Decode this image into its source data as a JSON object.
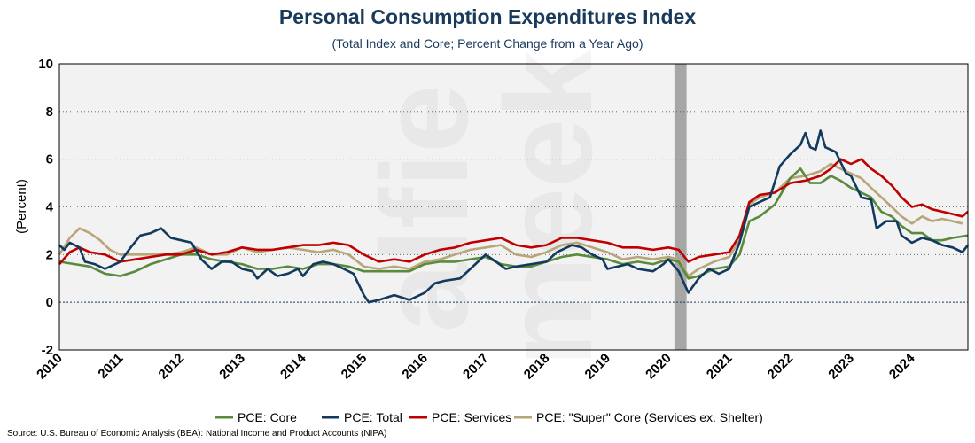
{
  "chart_data": {
    "type": "line",
    "title": "Personal Consumption Expenditures Index",
    "subtitle": "(Total Index and Core; Percent Change from a Year Ago)",
    "ylabel": "(Percent)",
    "xlabel": "",
    "xlim": [
      2010,
      2024.92
    ],
    "ylim": [
      -2,
      10
    ],
    "yticks": [
      -2,
      0,
      2,
      4,
      6,
      8,
      10
    ],
    "xticks": [
      2010,
      2011,
      2012,
      2013,
      2014,
      2015,
      2016,
      2017,
      2018,
      2019,
      2020,
      2021,
      2022,
      2023,
      2024
    ],
    "grid": "horizontal-dotted",
    "legend": "bottom",
    "recession_shading": [
      2020.1,
      2020.3
    ],
    "source": "Source: U.S. Bureau of Economic Analysis (BEA): National Income and Product Accounts (NIPA)",
    "watermark": "alfie meek",
    "series": [
      {
        "name": "PCE: Core",
        "color": "#5a8a3c",
        "points": [
          [
            2010,
            1.7
          ],
          [
            2010.25,
            1.6
          ],
          [
            2010.5,
            1.5
          ],
          [
            2010.75,
            1.2
          ],
          [
            2011,
            1.1
          ],
          [
            2011.25,
            1.3
          ],
          [
            2011.5,
            1.6
          ],
          [
            2011.75,
            1.8
          ],
          [
            2012,
            2.0
          ],
          [
            2012.25,
            2.0
          ],
          [
            2012.5,
            1.8
          ],
          [
            2012.75,
            1.7
          ],
          [
            2013,
            1.6
          ],
          [
            2013.25,
            1.4
          ],
          [
            2013.5,
            1.4
          ],
          [
            2013.75,
            1.5
          ],
          [
            2014,
            1.4
          ],
          [
            2014.25,
            1.6
          ],
          [
            2014.5,
            1.6
          ],
          [
            2014.75,
            1.5
          ],
          [
            2015,
            1.3
          ],
          [
            2015.25,
            1.3
          ],
          [
            2015.5,
            1.3
          ],
          [
            2015.75,
            1.3
          ],
          [
            2016,
            1.6
          ],
          [
            2016.25,
            1.7
          ],
          [
            2016.5,
            1.7
          ],
          [
            2016.75,
            1.8
          ],
          [
            2017,
            1.9
          ],
          [
            2017.25,
            1.6
          ],
          [
            2017.5,
            1.5
          ],
          [
            2017.75,
            1.5
          ],
          [
            2018,
            1.7
          ],
          [
            2018.25,
            1.9
          ],
          [
            2018.5,
            2.0
          ],
          [
            2018.75,
            1.9
          ],
          [
            2019,
            1.8
          ],
          [
            2019.25,
            1.6
          ],
          [
            2019.5,
            1.7
          ],
          [
            2019.75,
            1.6
          ],
          [
            2020,
            1.8
          ],
          [
            2020.17,
            1.7
          ],
          [
            2020.33,
            1.0
          ],
          [
            2020.5,
            1.1
          ],
          [
            2020.75,
            1.4
          ],
          [
            2021,
            1.5
          ],
          [
            2021.17,
            2.0
          ],
          [
            2021.33,
            3.4
          ],
          [
            2021.5,
            3.6
          ],
          [
            2021.75,
            4.1
          ],
          [
            2022,
            5.2
          ],
          [
            2022.17,
            5.6
          ],
          [
            2022.33,
            5.0
          ],
          [
            2022.5,
            5.0
          ],
          [
            2022.67,
            5.3
          ],
          [
            2022.83,
            5.1
          ],
          [
            2023,
            4.8
          ],
          [
            2023.17,
            4.6
          ],
          [
            2023.33,
            4.4
          ],
          [
            2023.5,
            3.8
          ],
          [
            2023.67,
            3.6
          ],
          [
            2023.83,
            3.2
          ],
          [
            2024,
            2.9
          ],
          [
            2024.17,
            2.9
          ],
          [
            2024.33,
            2.6
          ],
          [
            2024.5,
            2.6
          ],
          [
            2024.67,
            2.7
          ],
          [
            2024.92,
            2.8
          ]
        ]
      },
      {
        "name": "PCE: Total",
        "color": "#123a5e",
        "points": [
          [
            2010,
            2.4
          ],
          [
            2010.08,
            2.2
          ],
          [
            2010.17,
            2.5
          ],
          [
            2010.33,
            2.3
          ],
          [
            2010.42,
            1.7
          ],
          [
            2010.58,
            1.6
          ],
          [
            2010.75,
            1.4
          ],
          [
            2010.92,
            1.6
          ],
          [
            2011,
            1.7
          ],
          [
            2011.17,
            2.3
          ],
          [
            2011.33,
            2.8
          ],
          [
            2011.5,
            2.9
          ],
          [
            2011.67,
            3.1
          ],
          [
            2011.83,
            2.7
          ],
          [
            2012,
            2.6
          ],
          [
            2012.17,
            2.5
          ],
          [
            2012.33,
            1.8
          ],
          [
            2012.5,
            1.4
          ],
          [
            2012.67,
            1.7
          ],
          [
            2012.83,
            1.7
          ],
          [
            2013,
            1.4
          ],
          [
            2013.17,
            1.3
          ],
          [
            2013.25,
            1.0
          ],
          [
            2013.42,
            1.4
          ],
          [
            2013.58,
            1.1
          ],
          [
            2013.75,
            1.2
          ],
          [
            2013.92,
            1.4
          ],
          [
            2014,
            1.1
          ],
          [
            2014.17,
            1.6
          ],
          [
            2014.33,
            1.7
          ],
          [
            2014.5,
            1.6
          ],
          [
            2014.67,
            1.4
          ],
          [
            2014.83,
            1.2
          ],
          [
            2015,
            0.3
          ],
          [
            2015.08,
            0.0
          ],
          [
            2015.25,
            0.1
          ],
          [
            2015.5,
            0.3
          ],
          [
            2015.75,
            0.1
          ],
          [
            2016,
            0.4
          ],
          [
            2016.17,
            0.8
          ],
          [
            2016.33,
            0.9
          ],
          [
            2016.58,
            1.0
          ],
          [
            2016.75,
            1.4
          ],
          [
            2017,
            2.0
          ],
          [
            2017.17,
            1.7
          ],
          [
            2017.33,
            1.4
          ],
          [
            2017.5,
            1.5
          ],
          [
            2017.75,
            1.6
          ],
          [
            2018,
            1.7
          ],
          [
            2018.17,
            2.1
          ],
          [
            2018.42,
            2.4
          ],
          [
            2018.58,
            2.3
          ],
          [
            2018.75,
            2.0
          ],
          [
            2018.92,
            1.8
          ],
          [
            2019,
            1.4
          ],
          [
            2019.17,
            1.5
          ],
          [
            2019.33,
            1.6
          ],
          [
            2019.5,
            1.4
          ],
          [
            2019.75,
            1.3
          ],
          [
            2019.92,
            1.6
          ],
          [
            2020,
            1.8
          ],
          [
            2020.17,
            1.3
          ],
          [
            2020.33,
            0.4
          ],
          [
            2020.5,
            1.0
          ],
          [
            2020.67,
            1.4
          ],
          [
            2020.83,
            1.2
          ],
          [
            2021,
            1.4
          ],
          [
            2021.17,
            2.5
          ],
          [
            2021.33,
            4.0
          ],
          [
            2021.5,
            4.2
          ],
          [
            2021.67,
            4.4
          ],
          [
            2021.83,
            5.7
          ],
          [
            2022,
            6.2
          ],
          [
            2022.17,
            6.6
          ],
          [
            2022.25,
            7.1
          ],
          [
            2022.33,
            6.5
          ],
          [
            2022.42,
            6.4
          ],
          [
            2022.5,
            7.2
          ],
          [
            2022.58,
            6.5
          ],
          [
            2022.75,
            6.3
          ],
          [
            2022.92,
            5.4
          ],
          [
            2023,
            5.3
          ],
          [
            2023.17,
            4.4
          ],
          [
            2023.33,
            4.3
          ],
          [
            2023.42,
            3.1
          ],
          [
            2023.58,
            3.4
          ],
          [
            2023.75,
            3.4
          ],
          [
            2023.83,
            2.8
          ],
          [
            2024,
            2.5
          ],
          [
            2024.17,
            2.7
          ],
          [
            2024.33,
            2.6
          ],
          [
            2024.5,
            2.4
          ],
          [
            2024.67,
            2.3
          ],
          [
            2024.83,
            2.1
          ],
          [
            2024.92,
            2.4
          ]
        ]
      },
      {
        "name": "PCE: Services",
        "color": "#c00000",
        "points": [
          [
            2010,
            1.6
          ],
          [
            2010.17,
            2.1
          ],
          [
            2010.33,
            2.3
          ],
          [
            2010.5,
            2.1
          ],
          [
            2010.75,
            2.0
          ],
          [
            2011,
            1.7
          ],
          [
            2011.25,
            1.8
          ],
          [
            2011.5,
            1.9
          ],
          [
            2011.75,
            2.0
          ],
          [
            2012,
            2.0
          ],
          [
            2012.25,
            2.2
          ],
          [
            2012.5,
            2.0
          ],
          [
            2012.75,
            2.1
          ],
          [
            2013,
            2.3
          ],
          [
            2013.25,
            2.2
          ],
          [
            2013.5,
            2.2
          ],
          [
            2013.75,
            2.3
          ],
          [
            2014,
            2.4
          ],
          [
            2014.25,
            2.4
          ],
          [
            2014.5,
            2.5
          ],
          [
            2014.75,
            2.4
          ],
          [
            2015,
            2.0
          ],
          [
            2015.25,
            1.7
          ],
          [
            2015.5,
            1.8
          ],
          [
            2015.75,
            1.7
          ],
          [
            2016,
            2.0
          ],
          [
            2016.25,
            2.2
          ],
          [
            2016.5,
            2.3
          ],
          [
            2016.75,
            2.5
          ],
          [
            2017,
            2.6
          ],
          [
            2017.25,
            2.7
          ],
          [
            2017.5,
            2.4
          ],
          [
            2017.75,
            2.3
          ],
          [
            2018,
            2.4
          ],
          [
            2018.25,
            2.7
          ],
          [
            2018.5,
            2.7
          ],
          [
            2018.75,
            2.6
          ],
          [
            2019,
            2.5
          ],
          [
            2019.25,
            2.3
          ],
          [
            2019.5,
            2.3
          ],
          [
            2019.75,
            2.2
          ],
          [
            2020,
            2.3
          ],
          [
            2020.17,
            2.2
          ],
          [
            2020.33,
            1.7
          ],
          [
            2020.5,
            1.9
          ],
          [
            2020.75,
            2.0
          ],
          [
            2021,
            2.1
          ],
          [
            2021.17,
            2.8
          ],
          [
            2021.33,
            4.2
          ],
          [
            2021.5,
            4.5
          ],
          [
            2021.75,
            4.6
          ],
          [
            2022,
            5.0
          ],
          [
            2022.25,
            5.1
          ],
          [
            2022.5,
            5.3
          ],
          [
            2022.67,
            5.6
          ],
          [
            2022.83,
            6.0
          ],
          [
            2023,
            5.8
          ],
          [
            2023.17,
            6.0
          ],
          [
            2023.33,
            5.6
          ],
          [
            2023.5,
            5.3
          ],
          [
            2023.67,
            4.9
          ],
          [
            2023.83,
            4.4
          ],
          [
            2024,
            4.0
          ],
          [
            2024.17,
            4.1
          ],
          [
            2024.33,
            3.9
          ],
          [
            2024.5,
            3.8
          ],
          [
            2024.67,
            3.7
          ],
          [
            2024.83,
            3.6
          ],
          [
            2024.92,
            3.8
          ]
        ]
      },
      {
        "name": "PCE: \"Super\" Core (Services ex. Shelter)",
        "color": "#b9a57a",
        "points": [
          [
            2010,
            2.0
          ],
          [
            2010.17,
            2.7
          ],
          [
            2010.33,
            3.1
          ],
          [
            2010.5,
            2.9
          ],
          [
            2010.67,
            2.6
          ],
          [
            2010.83,
            2.2
          ],
          [
            2011,
            2.0
          ],
          [
            2011.25,
            2.0
          ],
          [
            2011.5,
            2.0
          ],
          [
            2011.75,
            2.0
          ],
          [
            2012,
            2.1
          ],
          [
            2012.25,
            2.3
          ],
          [
            2012.5,
            2.0
          ],
          [
            2012.75,
            2.0
          ],
          [
            2013,
            2.3
          ],
          [
            2013.25,
            2.1
          ],
          [
            2013.5,
            2.2
          ],
          [
            2013.75,
            2.3
          ],
          [
            2014,
            2.2
          ],
          [
            2014.25,
            2.1
          ],
          [
            2014.5,
            2.2
          ],
          [
            2014.75,
            2.0
          ],
          [
            2015,
            1.5
          ],
          [
            2015.25,
            1.4
          ],
          [
            2015.5,
            1.5
          ],
          [
            2015.75,
            1.4
          ],
          [
            2016,
            1.7
          ],
          [
            2016.25,
            1.8
          ],
          [
            2016.5,
            2.0
          ],
          [
            2016.75,
            2.2
          ],
          [
            2017,
            2.3
          ],
          [
            2017.25,
            2.4
          ],
          [
            2017.5,
            2.0
          ],
          [
            2017.75,
            1.9
          ],
          [
            2018,
            2.1
          ],
          [
            2018.25,
            2.4
          ],
          [
            2018.5,
            2.5
          ],
          [
            2018.75,
            2.3
          ],
          [
            2019,
            2.1
          ],
          [
            2019.25,
            1.8
          ],
          [
            2019.5,
            1.9
          ],
          [
            2019.75,
            1.8
          ],
          [
            2020,
            1.9
          ],
          [
            2020.17,
            1.8
          ],
          [
            2020.33,
            1.1
          ],
          [
            2020.5,
            1.4
          ],
          [
            2020.75,
            1.7
          ],
          [
            2021,
            1.9
          ],
          [
            2021.17,
            2.6
          ],
          [
            2021.33,
            4.1
          ],
          [
            2021.5,
            4.4
          ],
          [
            2021.75,
            4.6
          ],
          [
            2022,
            5.2
          ],
          [
            2022.25,
            5.3
          ],
          [
            2022.5,
            5.5
          ],
          [
            2022.67,
            5.8
          ],
          [
            2022.83,
            5.6
          ],
          [
            2023,
            5.4
          ],
          [
            2023.17,
            5.2
          ],
          [
            2023.33,
            4.8
          ],
          [
            2023.5,
            4.4
          ],
          [
            2023.67,
            4.0
          ],
          [
            2023.83,
            3.6
          ],
          [
            2024,
            3.3
          ],
          [
            2024.17,
            3.6
          ],
          [
            2024.33,
            3.4
          ],
          [
            2024.5,
            3.5
          ],
          [
            2024.67,
            3.4
          ],
          [
            2024.83,
            3.3
          ]
        ]
      }
    ]
  }
}
